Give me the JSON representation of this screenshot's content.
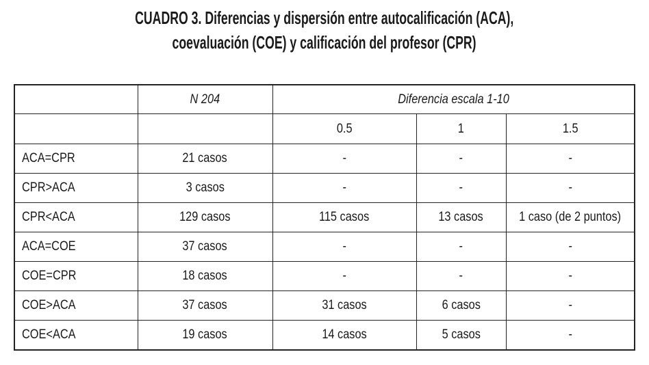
{
  "title": {
    "label": "CUADRO 3.",
    "lines": [
      "Diferencias y dispersión entre autocalificación (ACA),",
      "coevaluación (COE) y calificación del profesor (CPR)"
    ]
  },
  "table": {
    "top_headers": [
      "N 204",
      "Diferencia escala 1-10"
    ],
    "sub_headers": [
      "0.5",
      "1",
      "1.5"
    ],
    "rows": [
      [
        "ACA=CPR",
        "21 casos",
        "-",
        "-",
        "-"
      ],
      [
        "CPR>ACA",
        "3 casos",
        "-",
        "-",
        "-"
      ],
      [
        "CPR<ACA",
        "129 casos",
        "115 casos",
        "13 casos",
        "1 caso (de 2 puntos)"
      ],
      [
        "ACA=COE",
        "37 casos",
        "-",
        "-",
        "-"
      ],
      [
        "COE=CPR",
        "18 casos",
        "-",
        "-",
        "-"
      ],
      [
        "COE>ACA",
        "37 casos",
        "31 casos",
        "6 casos",
        "-"
      ],
      [
        "COE<ACA",
        "19 casos",
        "14 casos",
        "5 casos",
        "-"
      ]
    ]
  }
}
